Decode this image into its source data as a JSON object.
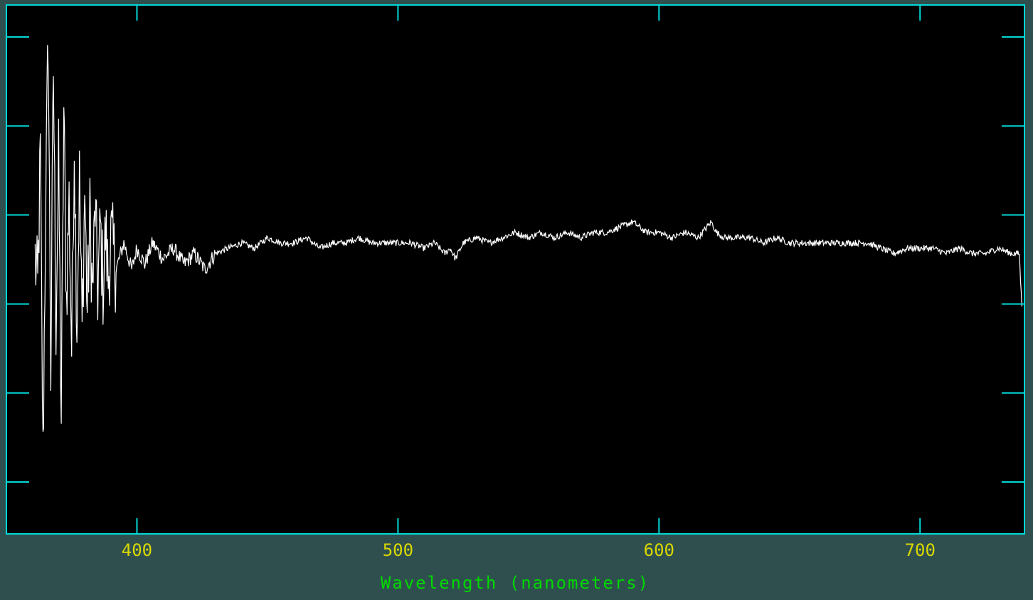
{
  "colors": {
    "background": "#2f4f4f",
    "plot_background": "#000000",
    "frame": "#00d8d8",
    "trace": "#ffffff",
    "tick_label": "#d8d800",
    "axis_label": "#00d800"
  },
  "chart_data": {
    "type": "line",
    "xlabel": "Wavelength (nanometers)",
    "ylabel": "",
    "xlim": [
      350,
      740
    ],
    "ylim": [
      0,
      1
    ],
    "x_ticks": [
      400,
      500,
      600,
      700
    ],
    "x_tick_labels": [
      "400",
      "500",
      "600",
      "700"
    ],
    "y_tick_count": 6,
    "grid": false,
    "series": [
      {
        "name": "",
        "points": [
          [
            361,
            0.52
          ],
          [
            362,
            0.46
          ],
          [
            363,
            0.72
          ],
          [
            364,
            0.14
          ],
          [
            365,
            0.6
          ],
          [
            366,
            0.95
          ],
          [
            367,
            0.31
          ],
          [
            368,
            0.88
          ],
          [
            369,
            0.4
          ],
          [
            370,
            0.7
          ],
          [
            371,
            0.22
          ],
          [
            372,
            0.8
          ],
          [
            373,
            0.44
          ],
          [
            374,
            0.63
          ],
          [
            375,
            0.35
          ],
          [
            376,
            0.75
          ],
          [
            377,
            0.4
          ],
          [
            378,
            0.67
          ],
          [
            379,
            0.38
          ],
          [
            380,
            0.65
          ],
          [
            381,
            0.42
          ],
          [
            382,
            0.6
          ],
          [
            383,
            0.45
          ],
          [
            384,
            0.62
          ],
          [
            385,
            0.46
          ],
          [
            386,
            0.58
          ],
          [
            387,
            0.47
          ],
          [
            388,
            0.57
          ],
          [
            389,
            0.48
          ],
          [
            390,
            0.56
          ],
          [
            392,
            0.5
          ],
          [
            395,
            0.55
          ],
          [
            398,
            0.5
          ],
          [
            400,
            0.54
          ],
          [
            403,
            0.51
          ],
          [
            406,
            0.55
          ],
          [
            410,
            0.52
          ],
          [
            414,
            0.54
          ],
          [
            418,
            0.51
          ],
          [
            422,
            0.53
          ],
          [
            426,
            0.5
          ],
          [
            430,
            0.53
          ],
          [
            435,
            0.54
          ],
          [
            440,
            0.55
          ],
          [
            445,
            0.54
          ],
          [
            450,
            0.56
          ],
          [
            455,
            0.55
          ],
          [
            460,
            0.55
          ],
          [
            465,
            0.56
          ],
          [
            470,
            0.54
          ],
          [
            475,
            0.55
          ],
          [
            480,
            0.55
          ],
          [
            485,
            0.56
          ],
          [
            490,
            0.55
          ],
          [
            495,
            0.55
          ],
          [
            500,
            0.55
          ],
          [
            505,
            0.55
          ],
          [
            510,
            0.54
          ],
          [
            514,
            0.55
          ],
          [
            518,
            0.53
          ],
          [
            520,
            0.54
          ],
          [
            522,
            0.52
          ],
          [
            525,
            0.55
          ],
          [
            530,
            0.56
          ],
          [
            535,
            0.55
          ],
          [
            540,
            0.56
          ],
          [
            545,
            0.57
          ],
          [
            550,
            0.56
          ],
          [
            555,
            0.57
          ],
          [
            560,
            0.56
          ],
          [
            565,
            0.57
          ],
          [
            570,
            0.56
          ],
          [
            575,
            0.57
          ],
          [
            580,
            0.57
          ],
          [
            585,
            0.58
          ],
          [
            590,
            0.59
          ],
          [
            595,
            0.57
          ],
          [
            600,
            0.57
          ],
          [
            605,
            0.56
          ],
          [
            610,
            0.57
          ],
          [
            615,
            0.56
          ],
          [
            620,
            0.59
          ],
          [
            622,
            0.57
          ],
          [
            625,
            0.56
          ],
          [
            630,
            0.56
          ],
          [
            635,
            0.56
          ],
          [
            640,
            0.55
          ],
          [
            645,
            0.56
          ],
          [
            650,
            0.55
          ],
          [
            655,
            0.55
          ],
          [
            660,
            0.55
          ],
          [
            665,
            0.55
          ],
          [
            670,
            0.55
          ],
          [
            675,
            0.55
          ],
          [
            680,
            0.55
          ],
          [
            685,
            0.54
          ],
          [
            690,
            0.53
          ],
          [
            695,
            0.54
          ],
          [
            700,
            0.54
          ],
          [
            705,
            0.54
          ],
          [
            710,
            0.53
          ],
          [
            715,
            0.54
          ],
          [
            720,
            0.53
          ],
          [
            725,
            0.53
          ],
          [
            730,
            0.54
          ],
          [
            735,
            0.53
          ],
          [
            738,
            0.53
          ],
          [
            739,
            0.43
          ]
        ]
      }
    ]
  }
}
